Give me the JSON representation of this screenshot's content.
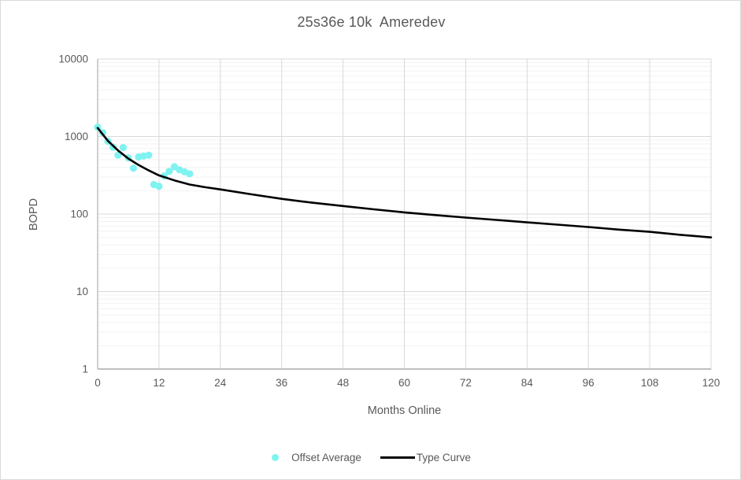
{
  "chart_data": {
    "type": "scatter",
    "title": "25s36e 10k  Ameredev",
    "xlabel": "Months Online",
    "ylabel": "BOPD",
    "x_ticks": [
      0,
      12,
      24,
      36,
      48,
      60,
      72,
      84,
      96,
      108,
      120
    ],
    "y_ticks": [
      1,
      10,
      100,
      1000,
      10000
    ],
    "xlim": [
      0,
      120
    ],
    "ylim": [
      1,
      10000
    ],
    "y_scale": "log",
    "grid": {
      "vertical": true,
      "horizontal_major": true,
      "horizontal_log_minor": true
    },
    "legend_position": "bottom",
    "series": [
      {
        "name": "Offset Average",
        "style": "scatter",
        "color": "#7ff3f0",
        "marker": "circle",
        "x": [
          0,
          1,
          2,
          3,
          4,
          5,
          6,
          7,
          8,
          9,
          10,
          11,
          12,
          13,
          14,
          15,
          16,
          17,
          18
        ],
        "y": [
          1320,
          1120,
          870,
          730,
          575,
          720,
          530,
          390,
          545,
          560,
          575,
          240,
          228,
          310,
          355,
          408,
          372,
          350,
          330
        ]
      },
      {
        "name": "Type Curve",
        "style": "line",
        "color": "#000000",
        "x": [
          0,
          2,
          4,
          6,
          8,
          10,
          12,
          15,
          18,
          21,
          24,
          30,
          36,
          42,
          48,
          54,
          60,
          66,
          72,
          78,
          84,
          90,
          96,
          102,
          108,
          114,
          120
        ],
        "y": [
          1290,
          880,
          660,
          520,
          430,
          365,
          315,
          272,
          240,
          222,
          208,
          180,
          157,
          140,
          127,
          115,
          105,
          97,
          90,
          84,
          78,
          73,
          68,
          63,
          59,
          54,
          50
        ]
      }
    ]
  },
  "colors": {
    "text": "#595959",
    "grid_major": "#d9d9d9",
    "grid_minor": "#f2f2f2",
    "axis_line": "#bfbfbf",
    "chart_border": "#d9d9d9",
    "scatter": "#7ff3f0",
    "line": "#000000"
  }
}
